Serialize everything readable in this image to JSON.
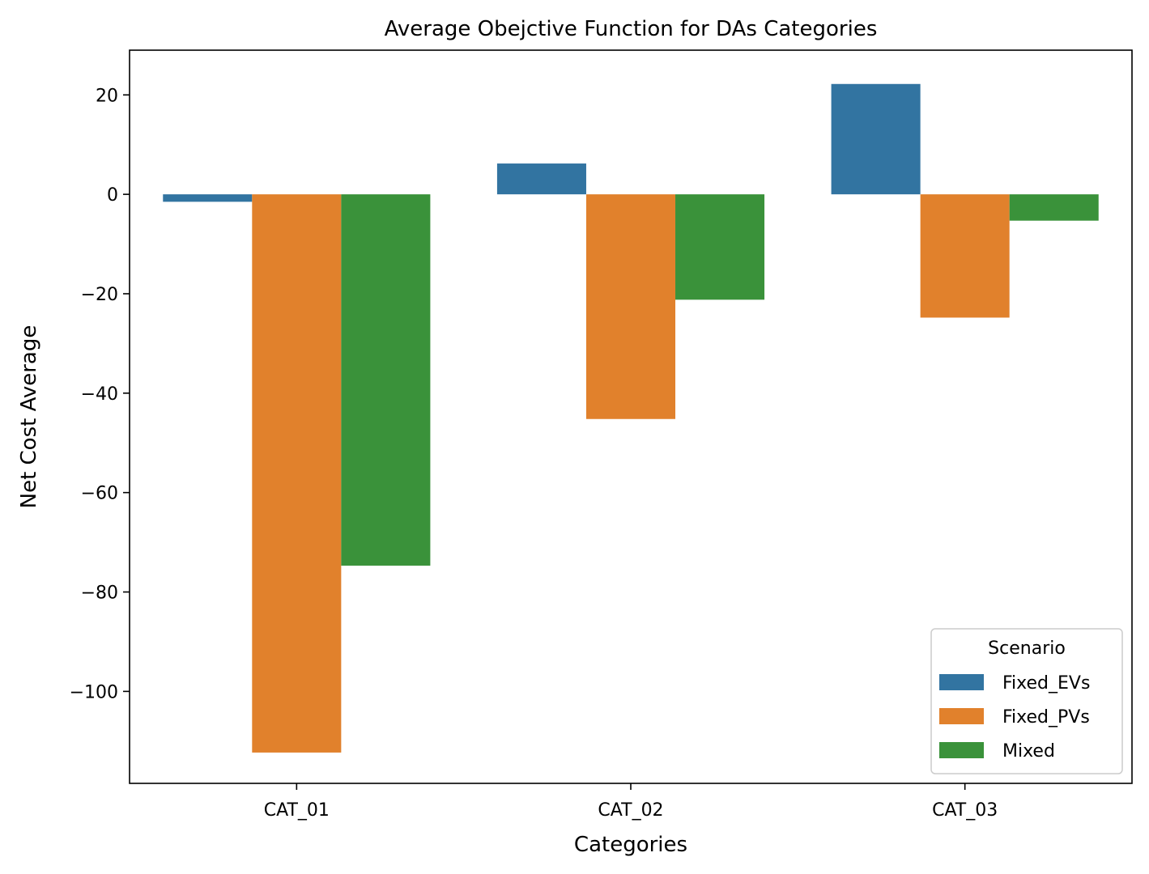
{
  "chart_data": {
    "type": "bar",
    "title": "Average Obejctive Function for DAs Categories",
    "xlabel": "Categories",
    "ylabel": "Net Cost Average",
    "categories": [
      "CAT_01",
      "CAT_02",
      "CAT_03"
    ],
    "series": [
      {
        "name": "Fixed_EVs",
        "color": "#3274a1",
        "values": [
          -1.5,
          6.2,
          22.2
        ]
      },
      {
        "name": "Fixed_PVs",
        "color": "#e1812c",
        "values": [
          -112.3,
          -45.2,
          -24.8
        ]
      },
      {
        "name": "Mixed",
        "color": "#3a923a",
        "values": [
          -74.7,
          -21.2,
          -5.3
        ]
      }
    ],
    "ylim": [
      -118.5,
      29.0
    ],
    "yticks": [
      20,
      0,
      -20,
      -40,
      -60,
      -80,
      -100
    ],
    "ytick_labels": [
      "20",
      "0",
      "−20",
      "−40",
      "−60",
      "−80",
      "−100"
    ],
    "grid": false,
    "legend": {
      "title": "Scenario",
      "position": "lower-right"
    }
  }
}
